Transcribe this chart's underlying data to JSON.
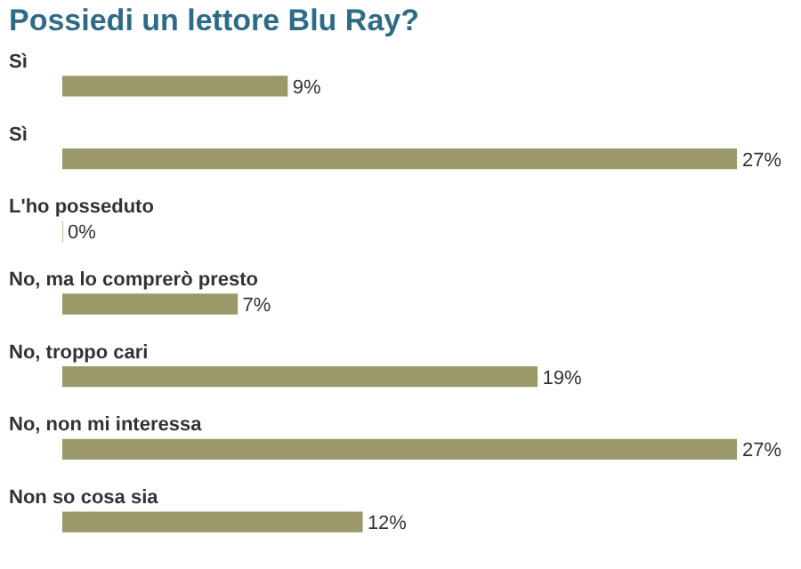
{
  "chart_data": {
    "type": "bar",
    "orientation": "horizontal",
    "title": "Possiedi un lettore Blu Ray?",
    "categories": [
      "Sì",
      "Sì",
      "L'ho posseduto",
      "No, ma lo comprerò presto",
      "No, troppo cari",
      "No, non mi interessa",
      "Non so cosa sia"
    ],
    "values": [
      9,
      27,
      0,
      7,
      19,
      27,
      12
    ],
    "value_labels": [
      "9%",
      "27%",
      "0%",
      "7%",
      "19%",
      "27%",
      "12%"
    ],
    "color": "#9b9869"
  }
}
